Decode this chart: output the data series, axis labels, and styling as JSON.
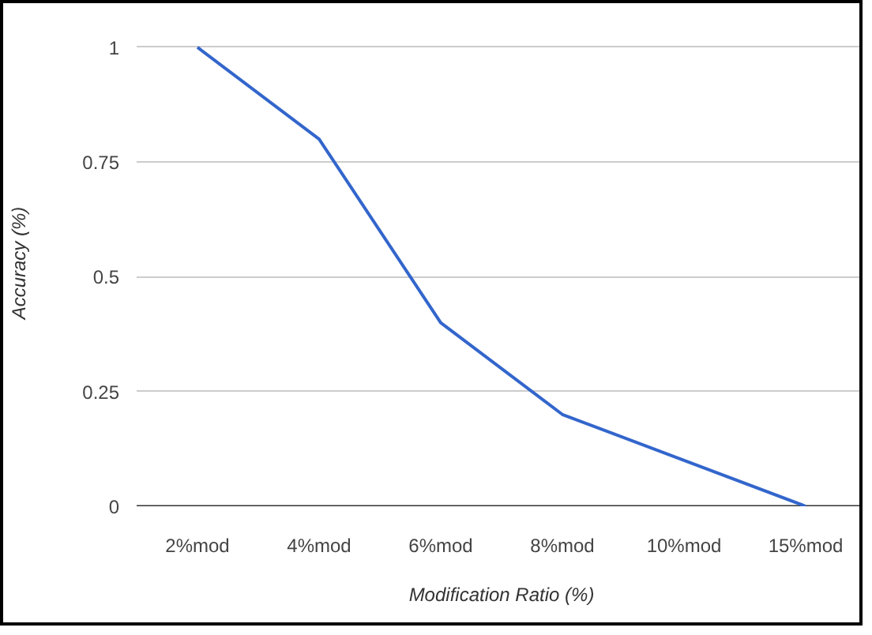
{
  "chart_data": {
    "type": "line",
    "xlabel": "Modification Ratio (%)",
    "ylabel": "Accuracy (%)",
    "categories": [
      "2%mod",
      "4%mod",
      "6%mod",
      "8%mod",
      "10%mod",
      "15%mod"
    ],
    "series": [
      {
        "color": "#3366cc",
        "values": [
          1,
          0.8,
          0.4,
          0.2,
          0.1,
          0
        ]
      }
    ],
    "ylim": [
      0,
      1
    ],
    "yticks": [
      0,
      0.25,
      0.5,
      0.75,
      1
    ],
    "grid": "y",
    "marker": "none",
    "line_style": "solid"
  }
}
